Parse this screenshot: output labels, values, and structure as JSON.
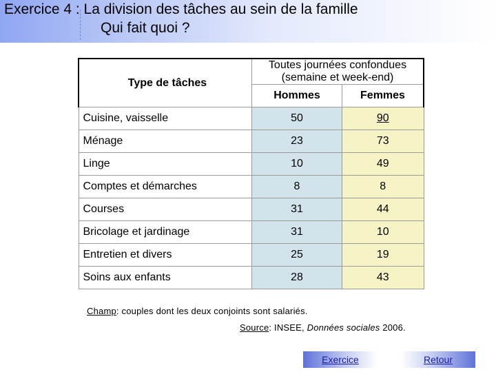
{
  "title": {
    "line1": "Exercice 4 : La division des tâches au sein de la famille",
    "line2": "Qui fait quoi ?"
  },
  "table": {
    "corner_label": "Type de tâches",
    "group_header": "Toutes journées confondues (semaine et week-end)",
    "col_men": "Hommes",
    "col_women": "Femmes",
    "rows": [
      {
        "task": "Cuisine, vaisselle",
        "men": "50",
        "women": "90"
      },
      {
        "task": "Ménage",
        "men": "23",
        "women": "73"
      },
      {
        "task": "Linge",
        "men": "10",
        "women": "49"
      },
      {
        "task": "Comptes et démarches",
        "men": "8",
        "women": "8"
      },
      {
        "task": "Courses",
        "men": "31",
        "women": "44"
      },
      {
        "task": "Bricolage et jardinage",
        "men": "31",
        "women": "10"
      },
      {
        "task": "Entretien et divers",
        "men": "25",
        "women": "19"
      },
      {
        "task": "Soins aux enfants",
        "men": "28",
        "women": "43"
      }
    ]
  },
  "notes": {
    "champ_label": "Champ",
    "champ_text": ": couples dont les deux conjoints sont salariés.",
    "source_label": "Source",
    "source_text_a": ": INSEE, ",
    "source_text_italic": "Données sociales",
    "source_text_b": " 2006."
  },
  "nav": {
    "exercise_label": "Exercice",
    "return_label": "Retour"
  }
}
